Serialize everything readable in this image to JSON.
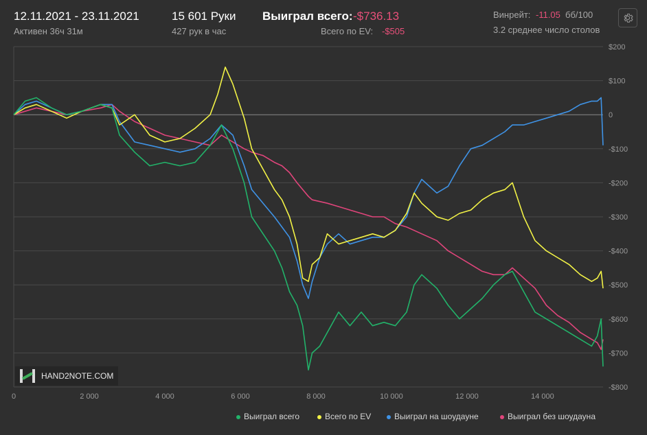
{
  "header": {
    "date_range": "12.11.2021 - 23.11.2021",
    "active_time": "Активен 36ч 31м",
    "hands": "15 601 Руки",
    "hands_per_hour": "427 рук в час",
    "won_total_label": "Выиграл всего:",
    "won_total_value": "-$736.13",
    "ev_label": "Всего по EV:",
    "ev_value": "-$505",
    "winrate_label": "Винрейт:",
    "winrate_value": "-11.05",
    "winrate_unit": "бб/100",
    "avg_tables": "3.2 среднее число столов",
    "settings_icon": "gear-icon"
  },
  "watermark": "HAND2NOTE.COM",
  "colors": {
    "background": "#2f2f2f",
    "grid": "#4a4a4a",
    "zero_line": "#8a8a8a",
    "negative": "#e8507a",
    "won": "#22b36a",
    "ev": "#f2f246",
    "showdown": "#3f93e6",
    "non_showdown": "#e0457b"
  },
  "chart_data": {
    "type": "line",
    "xlim": [
      0,
      15601
    ],
    "ylim": [
      -800,
      200
    ],
    "x_ticks": [
      0,
      2000,
      4000,
      6000,
      8000,
      10000,
      12000,
      14000
    ],
    "x_tick_labels": [
      "0",
      "2 000",
      "4 000",
      "6 000",
      "8 000",
      "10 000",
      "12 000",
      "14 000"
    ],
    "y_ticks": [
      200,
      100,
      0,
      -100,
      -200,
      -300,
      -400,
      -500,
      -600,
      -700,
      -800
    ],
    "y_tick_labels": [
      "$200",
      "$100",
      "0",
      "-$100",
      "-$200",
      "-$300",
      "-$400",
      "-$500",
      "-$600",
      "-$700",
      "-$800"
    ],
    "legend_position": "bottom-right",
    "series": [
      {
        "name": "Выиграл всего",
        "color": "#22b36a",
        "x": [
          0,
          300,
          600,
          1000,
          1400,
          1800,
          2300,
          2600,
          2800,
          3200,
          3600,
          4000,
          4400,
          4800,
          5200,
          5500,
          5800,
          6100,
          6300,
          6600,
          6900,
          7100,
          7300,
          7500,
          7650,
          7800,
          7900,
          8100,
          8300,
          8600,
          8900,
          9200,
          9500,
          9800,
          10100,
          10400,
          10600,
          10800,
          11200,
          11500,
          11800,
          12100,
          12400,
          12700,
          13000,
          13200,
          13500,
          13800,
          14100,
          14400,
          14700,
          15000,
          15300,
          15450,
          15550,
          15601
        ],
        "y": [
          0,
          40,
          50,
          20,
          0,
          10,
          30,
          20,
          -60,
          -110,
          -150,
          -140,
          -150,
          -140,
          -90,
          -30,
          -100,
          -200,
          -300,
          -350,
          -400,
          -450,
          -520,
          -560,
          -620,
          -750,
          -700,
          -680,
          -640,
          -580,
          -620,
          -580,
          -620,
          -610,
          -620,
          -580,
          -500,
          -470,
          -510,
          -560,
          -600,
          -570,
          -540,
          -500,
          -470,
          -460,
          -520,
          -580,
          -600,
          -620,
          -640,
          -660,
          -680,
          -650,
          -600,
          -740
        ]
      },
      {
        "name": "Всего по EV",
        "color": "#f2f246",
        "x": [
          0,
          300,
          600,
          1000,
          1400,
          1800,
          2300,
          2600,
          2800,
          3200,
          3600,
          4000,
          4400,
          4800,
          5200,
          5400,
          5600,
          5800,
          6100,
          6300,
          6600,
          6900,
          7100,
          7300,
          7500,
          7650,
          7800,
          7900,
          8100,
          8300,
          8600,
          8900,
          9200,
          9500,
          9800,
          10100,
          10400,
          10600,
          10800,
          11200,
          11500,
          11800,
          12100,
          12400,
          12700,
          13000,
          13200,
          13500,
          13800,
          14100,
          14400,
          14700,
          15000,
          15300,
          15450,
          15550,
          15601
        ],
        "y": [
          0,
          20,
          30,
          10,
          -10,
          10,
          30,
          20,
          -30,
          0,
          -60,
          -80,
          -70,
          -40,
          0,
          60,
          140,
          90,
          -10,
          -100,
          -160,
          -220,
          -250,
          -300,
          -380,
          -480,
          -490,
          -440,
          -420,
          -350,
          -380,
          -370,
          -360,
          -350,
          -360,
          -340,
          -290,
          -230,
          -260,
          -300,
          -310,
          -290,
          -280,
          -250,
          -230,
          -220,
          -200,
          -300,
          -370,
          -400,
          -420,
          -440,
          -470,
          -490,
          -480,
          -460,
          -510
        ]
      },
      {
        "name": "Выиграл на шоудауне",
        "color": "#3f93e6",
        "x": [
          0,
          300,
          600,
          1000,
          1400,
          1800,
          2300,
          2600,
          2800,
          3200,
          3600,
          4000,
          4400,
          4800,
          5200,
          5500,
          5800,
          6100,
          6300,
          6600,
          6900,
          7100,
          7300,
          7500,
          7650,
          7800,
          7900,
          8100,
          8300,
          8600,
          8900,
          9200,
          9500,
          9800,
          10100,
          10400,
          10600,
          10800,
          11200,
          11500,
          11800,
          12100,
          12400,
          12700,
          13000,
          13200,
          13500,
          13800,
          14100,
          14400,
          14700,
          15000,
          15300,
          15450,
          15550,
          15601
        ],
        "y": [
          0,
          30,
          40,
          20,
          0,
          10,
          30,
          30,
          -20,
          -80,
          -90,
          -100,
          -110,
          -100,
          -70,
          -30,
          -60,
          -150,
          -220,
          -260,
          -300,
          -330,
          -360,
          -430,
          -500,
          -540,
          -490,
          -420,
          -380,
          -350,
          -380,
          -370,
          -360,
          -360,
          -340,
          -300,
          -230,
          -190,
          -230,
          -210,
          -150,
          -100,
          -90,
          -70,
          -50,
          -30,
          -30,
          -20,
          -10,
          0,
          10,
          30,
          40,
          40,
          50,
          -90
        ]
      },
      {
        "name": "Выиграл без шоудауна",
        "color": "#e0457b",
        "x": [
          0,
          300,
          600,
          1000,
          1400,
          1800,
          2300,
          2600,
          2800,
          3200,
          3600,
          4000,
          4400,
          4800,
          5200,
          5500,
          5800,
          6100,
          6300,
          6600,
          6900,
          7100,
          7300,
          7500,
          7650,
          7800,
          7900,
          8100,
          8300,
          8600,
          8900,
          9200,
          9500,
          9800,
          10100,
          10400,
          10600,
          10800,
          11200,
          11500,
          11800,
          12100,
          12400,
          12700,
          13000,
          13200,
          13500,
          13800,
          14100,
          14400,
          14700,
          15000,
          15300,
          15450,
          15550,
          15601
        ],
        "y": [
          0,
          10,
          20,
          10,
          0,
          10,
          20,
          30,
          10,
          -20,
          -40,
          -60,
          -70,
          -80,
          -90,
          -60,
          -80,
          -100,
          -110,
          -120,
          -140,
          -150,
          -170,
          -200,
          -220,
          -240,
          -250,
          -255,
          -260,
          -270,
          -280,
          -290,
          -300,
          -300,
          -320,
          -330,
          -340,
          -350,
          -370,
          -400,
          -420,
          -440,
          -460,
          -470,
          -470,
          -450,
          -480,
          -510,
          -560,
          -590,
          -610,
          -640,
          -660,
          -670,
          -690,
          -660
        ]
      }
    ]
  }
}
